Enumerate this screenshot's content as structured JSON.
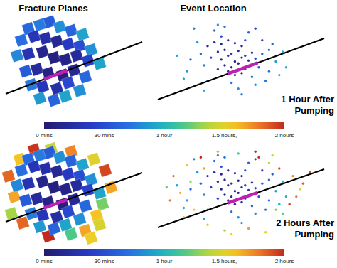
{
  "chart_data": [
    {
      "type": "scatter",
      "annotation": "1 Hour After Pumping",
      "xlim": [
        0,
        100
      ],
      "ylim": [
        0,
        100
      ],
      "tick_labels": false,
      "colorbar": {
        "range": [
          0,
          120
        ],
        "ticks": [
          {
            "value": 0,
            "label": "0 mins"
          },
          {
            "value": 30,
            "label": "30 mins"
          },
          {
            "value": 60,
            "label": "1 hour"
          },
          {
            "value": 90,
            "label": "1.5 hours,"
          },
          {
            "value": 120,
            "label": "2 hours"
          }
        ]
      },
      "series": [
        {
          "name": "Fracture Planes",
          "marker": "square",
          "x": [
            20,
            28,
            35,
            42,
            50,
            58,
            15,
            24,
            32,
            40,
            48,
            56,
            64,
            12,
            20,
            30,
            38,
            46,
            54,
            62,
            70,
            18,
            26,
            34,
            44,
            52,
            60,
            22,
            30,
            40,
            48,
            56,
            28,
            38,
            46
          ],
          "y": [
            88,
            92,
            95,
            90,
            86,
            82,
            76,
            80,
            78,
            75,
            72,
            70,
            66,
            60,
            62,
            64,
            58,
            56,
            60,
            55,
            52,
            44,
            46,
            42,
            40,
            45,
            38,
            30,
            28,
            26,
            32,
            24,
            16,
            14,
            18
          ],
          "time": [
            40,
            45,
            35,
            50,
            38,
            55,
            42,
            20,
            15,
            10,
            22,
            30,
            50,
            48,
            18,
            8,
            5,
            6,
            12,
            25,
            55,
            35,
            12,
            6,
            4,
            10,
            40,
            45,
            20,
            15,
            28,
            50,
            52,
            38,
            55
          ]
        },
        {
          "name": "Event Location",
          "marker": "circle",
          "x": [
            30,
            34,
            38,
            42,
            46,
            50,
            36,
            40,
            44,
            48,
            52,
            56,
            32,
            38,
            42,
            46,
            50,
            54,
            58,
            40,
            44,
            48,
            52,
            36,
            42,
            46,
            50,
            56,
            60,
            26,
            28,
            62,
            66,
            24,
            70,
            20,
            58,
            64,
            72,
            18,
            30,
            74,
            34,
            54,
            12,
            22,
            68,
            76,
            40,
            48,
            44,
            38,
            52,
            28,
            62,
            16,
            50,
            36,
            66,
            58
          ],
          "y": [
            70,
            74,
            72,
            76,
            73,
            70,
            64,
            66,
            62,
            65,
            60,
            63,
            58,
            56,
            60,
            54,
            58,
            55,
            57,
            50,
            48,
            52,
            46,
            46,
            44,
            40,
            42,
            38,
            48,
            62,
            50,
            62,
            44,
            74,
            54,
            56,
            30,
            34,
            40,
            44,
            34,
            64,
            86,
            84,
            60,
            88,
            72,
            48,
            90,
            26,
            32,
            80,
            76,
            24,
            76,
            36,
            20,
            92,
            66,
            88
          ],
          "time": [
            10,
            15,
            8,
            12,
            20,
            5,
            14,
            6,
            18,
            9,
            22,
            11,
            25,
            7,
            13,
            4,
            16,
            19,
            30,
            8,
            12,
            6,
            24,
            28,
            10,
            14,
            9,
            35,
            32,
            40,
            45,
            38,
            42,
            50,
            55,
            35,
            48,
            44,
            58,
            52,
            46,
            56,
            40,
            38,
            54,
            48,
            36,
            60,
            44,
            50,
            42,
            32,
            34,
            55,
            28,
            58,
            46,
            52,
            40,
            30
          ]
        }
      ]
    },
    {
      "type": "scatter",
      "annotation": "2 Hours After Pumping",
      "xlim": [
        0,
        100
      ],
      "ylim": [
        0,
        100
      ],
      "tick_labels": false,
      "colorbar": {
        "range": [
          0,
          120
        ],
        "ticks": [
          {
            "value": 0,
            "label": "0 mins"
          },
          {
            "value": 30,
            "label": "30 mins"
          },
          {
            "value": 60,
            "label": "1 hour"
          },
          {
            "value": 90,
            "label": "1.5 hours,"
          },
          {
            "value": 120,
            "label": "2 hours"
          }
        ]
      },
      "series": [
        {
          "marker": "square",
          "x": [
            6,
            14,
            10,
            24,
            36,
            50,
            66,
            74,
            78,
            72,
            68,
            8,
            16,
            60,
            70,
            34,
            50,
            64,
            20,
            28,
            35,
            42,
            50,
            58,
            15,
            24,
            32,
            40,
            48,
            56,
            64,
            12,
            20,
            30,
            38,
            46,
            54,
            62,
            70,
            18,
            26,
            34,
            44,
            52,
            60,
            22,
            30,
            40,
            48,
            56,
            28,
            38,
            46
          ],
          "y": [
            70,
            88,
            48,
            98,
            99,
            96,
            88,
            76,
            58,
            40,
            28,
            30,
            20,
            12,
            18,
            6,
            8,
            4,
            88,
            92,
            95,
            90,
            86,
            82,
            76,
            80,
            78,
            75,
            72,
            70,
            66,
            60,
            62,
            64,
            58,
            56,
            60,
            55,
            52,
            44,
            46,
            42,
            40,
            45,
            38,
            30,
            28,
            26,
            32,
            24,
            16,
            14,
            18
          ],
          "time": [
            110,
            95,
            100,
            118,
            85,
            105,
            90,
            115,
            100,
            75,
            95,
            80,
            110,
            100,
            88,
            120,
            70,
            92,
            40,
            45,
            35,
            50,
            38,
            55,
            42,
            20,
            15,
            10,
            22,
            30,
            50,
            48,
            18,
            8,
            5,
            6,
            12,
            25,
            55,
            35,
            12,
            6,
            4,
            10,
            40,
            45,
            20,
            15,
            28,
            50,
            52,
            38,
            55
          ]
        },
        {
          "marker": "circle",
          "x": [
            30,
            34,
            38,
            42,
            46,
            50,
            36,
            40,
            44,
            48,
            52,
            56,
            32,
            38,
            42,
            46,
            50,
            54,
            58,
            40,
            44,
            48,
            52,
            36,
            42,
            46,
            50,
            56,
            60,
            26,
            28,
            62,
            66,
            24,
            70,
            20,
            58,
            64,
            72,
            18,
            30,
            74,
            34,
            54,
            12,
            22,
            68,
            76,
            40,
            48,
            44,
            38,
            52,
            28,
            62,
            16,
            50,
            36,
            66,
            58,
            10,
            18,
            26,
            80,
            84,
            78,
            70,
            14,
            22,
            60,
            66,
            74,
            8,
            30,
            86,
            40,
            54,
            64,
            20,
            72,
            48,
            36,
            82,
            16,
            58,
            44,
            90,
            6,
            68,
            28
          ],
          "y": [
            70,
            74,
            72,
            76,
            73,
            70,
            64,
            66,
            62,
            65,
            60,
            63,
            58,
            56,
            60,
            54,
            58,
            55,
            57,
            50,
            48,
            52,
            46,
            46,
            44,
            40,
            42,
            38,
            48,
            62,
            50,
            62,
            44,
            74,
            54,
            56,
            30,
            34,
            40,
            44,
            34,
            64,
            86,
            84,
            60,
            88,
            72,
            48,
            90,
            26,
            32,
            80,
            76,
            24,
            76,
            36,
            20,
            92,
            66,
            88,
            70,
            82,
            90,
            70,
            56,
            40,
            34,
            52,
            34,
            90,
            84,
            30,
            44,
            18,
            62,
            12,
            14,
            10,
            64,
            78,
            94,
            96,
            48,
            26,
            96,
            8,
            74,
            58,
            92,
            78
          ],
          "time": [
            10,
            15,
            8,
            12,
            20,
            5,
            14,
            6,
            18,
            9,
            22,
            11,
            25,
            7,
            13,
            4,
            16,
            19,
            30,
            8,
            12,
            6,
            24,
            28,
            10,
            14,
            9,
            35,
            32,
            40,
            45,
            38,
            42,
            50,
            55,
            35,
            48,
            44,
            58,
            52,
            46,
            56,
            40,
            38,
            54,
            48,
            36,
            60,
            44,
            50,
            42,
            32,
            34,
            55,
            28,
            58,
            46,
            52,
            40,
            30,
            110,
            95,
            120,
            105,
            88,
            115,
            75,
            100,
            92,
            118,
            85,
            70,
            108,
            96,
            112,
            80,
            102,
            90,
            78,
            116,
            68,
            99,
            106,
            84,
            119,
            93,
            114,
            72,
            87,
            101
          ]
        }
      ]
    }
  ]
}
